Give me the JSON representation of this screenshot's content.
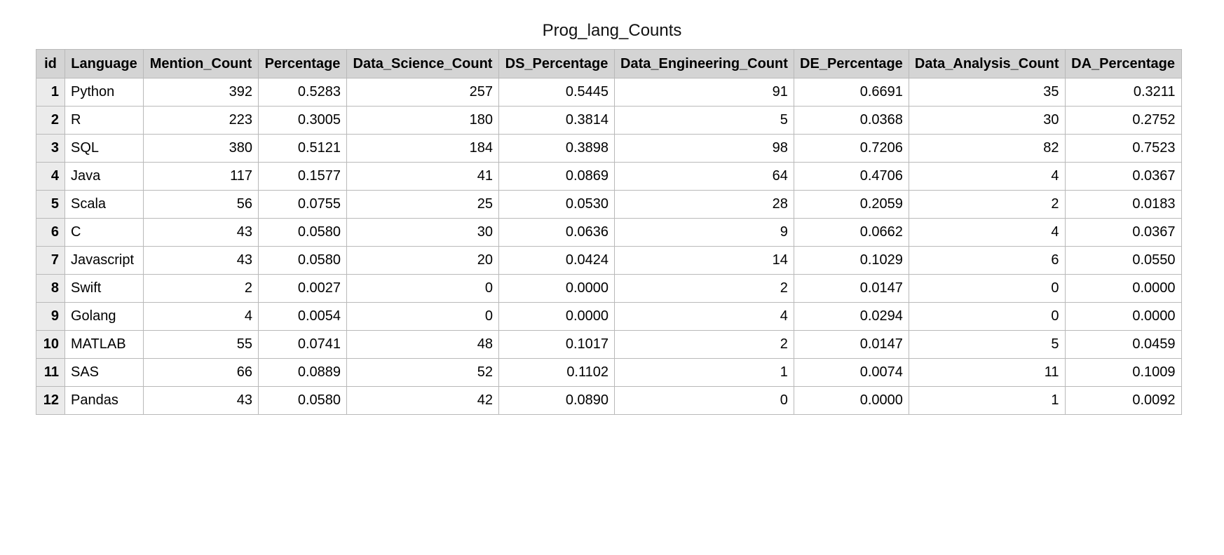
{
  "title": "Prog_lang_Counts",
  "columns": [
    "id",
    "Language",
    "Mention_Count",
    "Percentage",
    "Data_Science_Count",
    "DS_Percentage",
    "Data_Engineering_Count",
    "DE_Percentage",
    "Data_Analysis_Count",
    "DA_Percentage"
  ],
  "rows": [
    [
      "1",
      "Python",
      "392",
      "0.5283",
      "257",
      "0.5445",
      "91",
      "0.6691",
      "35",
      "0.3211"
    ],
    [
      "2",
      "R",
      "223",
      "0.3005",
      "180",
      "0.3814",
      "5",
      "0.0368",
      "30",
      "0.2752"
    ],
    [
      "3",
      "SQL",
      "380",
      "0.5121",
      "184",
      "0.3898",
      "98",
      "0.7206",
      "82",
      "0.7523"
    ],
    [
      "4",
      "Java",
      "117",
      "0.1577",
      "41",
      "0.0869",
      "64",
      "0.4706",
      "4",
      "0.0367"
    ],
    [
      "5",
      "Scala",
      "56",
      "0.0755",
      "25",
      "0.0530",
      "28",
      "0.2059",
      "2",
      "0.0183"
    ],
    [
      "6",
      "C",
      "43",
      "0.0580",
      "30",
      "0.0636",
      "9",
      "0.0662",
      "4",
      "0.0367"
    ],
    [
      "7",
      "Javascript",
      "43",
      "0.0580",
      "20",
      "0.0424",
      "14",
      "0.1029",
      "6",
      "0.0550"
    ],
    [
      "8",
      "Swift",
      "2",
      "0.0027",
      "0",
      "0.0000",
      "2",
      "0.0147",
      "0",
      "0.0000"
    ],
    [
      "9",
      "Golang",
      "4",
      "0.0054",
      "0",
      "0.0000",
      "4",
      "0.0294",
      "0",
      "0.0000"
    ],
    [
      "10",
      "MATLAB",
      "55",
      "0.0741",
      "48",
      "0.1017",
      "2",
      "0.0147",
      "5",
      "0.0459"
    ],
    [
      "11",
      "SAS",
      "66",
      "0.0889",
      "52",
      "0.1102",
      "1",
      "0.0074",
      "11",
      "0.1009"
    ],
    [
      "12",
      "Pandas",
      "43",
      "0.0580",
      "42",
      "0.0890",
      "0",
      "0.0000",
      "1",
      "0.0092"
    ]
  ],
  "colors": {
    "header_bg": "#d4d4d4",
    "id_column_bg": "#ebebeb",
    "grid_line": "#b9b9b9"
  }
}
